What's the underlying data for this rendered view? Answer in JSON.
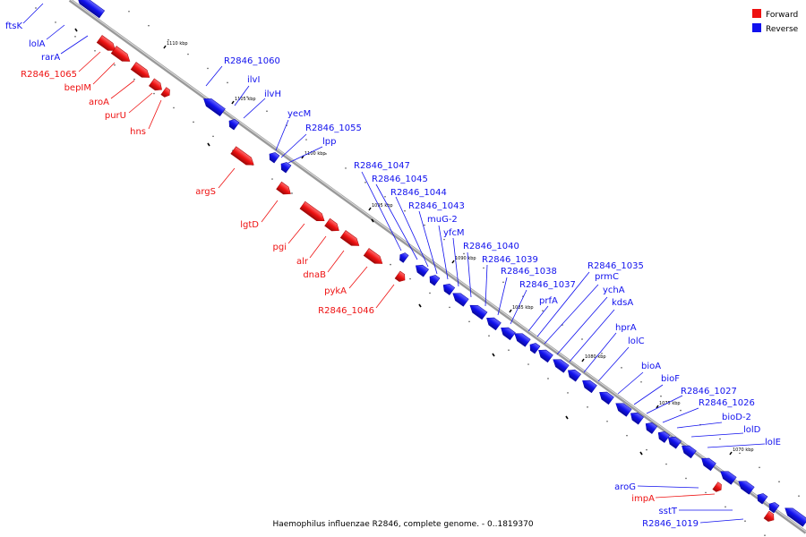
{
  "caption": "Haemophilus influenzae R2846, complete genome. - 0..1819370",
  "legend": [
    {
      "label": "Forward",
      "color": "#ee1111"
    },
    {
      "label": "Reverse",
      "color": "#1111ee"
    }
  ],
  "colors": {
    "forward": "#ee1111",
    "reverse": "#1111ee",
    "backbone": "#888888"
  },
  "scale_ticks": [
    "1110 kbp",
    "1105 kbp",
    "1100 kbp",
    "1095 kbp",
    "1090 kbp",
    "1085 kbp",
    "1080 kbp",
    "1075 kbp",
    "1070 kbp"
  ],
  "reverse_genes": [
    "ftsK",
    "lolA",
    "rarA",
    "R2846_1060",
    "ilvI",
    "ilvH",
    "yecM",
    "R2846_1055",
    "lpp",
    "R2846_1047",
    "R2846_1045",
    "R2846_1044",
    "R2846_1043",
    "muG-2",
    "yfcM",
    "R2846_1040",
    "R2846_1039",
    "R2846_1038",
    "R2846_1037",
    "R2846_1035",
    "prfA",
    "prmC",
    "ychA",
    "kdsA",
    "hprA",
    "lolC",
    "bioA",
    "bioF",
    "R2846_1027",
    "R2846_1026",
    "bioD-2",
    "lolD",
    "lolE",
    "aroG",
    "sstT",
    "R2846_1019"
  ],
  "forward_genes": [
    "R2846_1065",
    "bepIM",
    "aroA",
    "purU",
    "hns",
    "argS",
    "lgtD",
    "pgi",
    "alr",
    "dnaB",
    "pykA",
    "R2846_1046",
    "impA"
  ]
}
